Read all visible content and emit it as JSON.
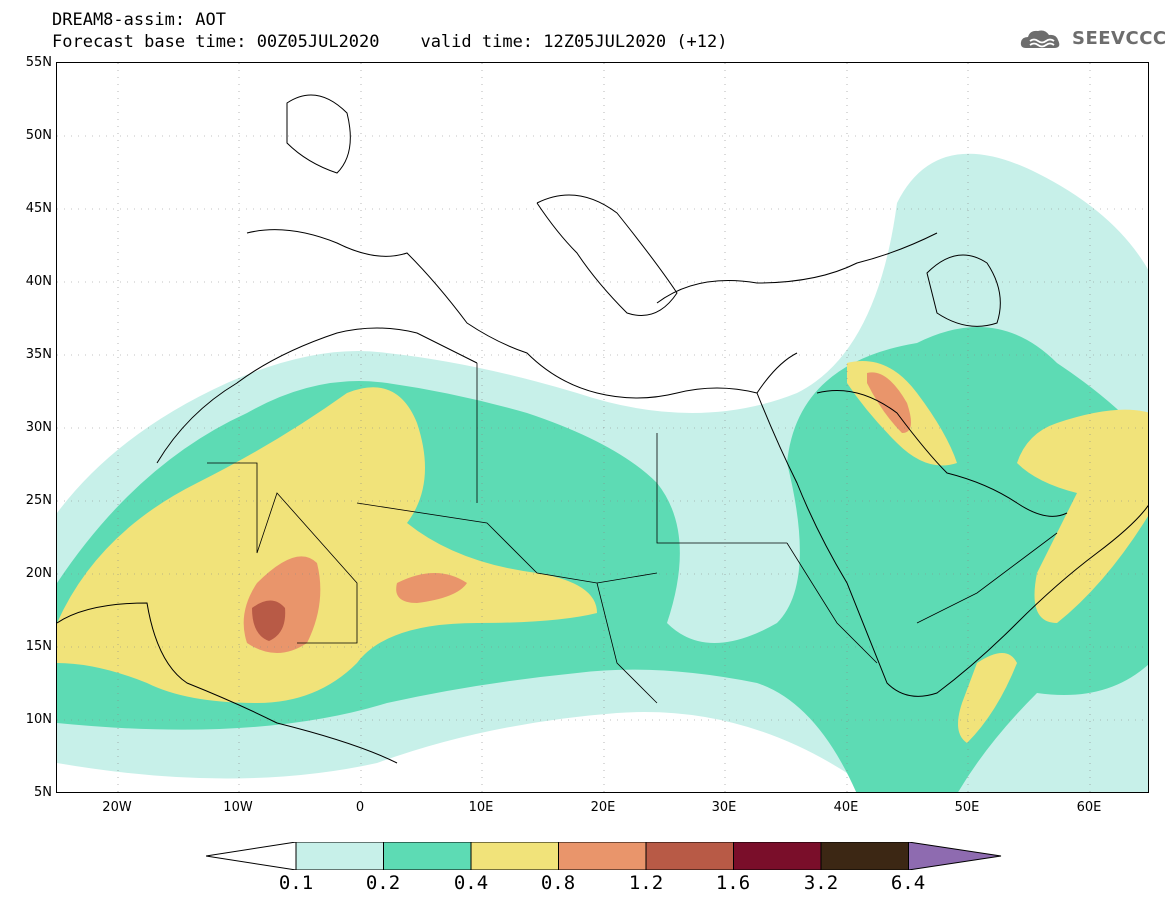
{
  "header": {
    "line1": "DREAM8-assim: AOT",
    "line2": "Forecast base time: 00Z05JUL2020    valid time: 12Z05JUL2020 (+12)"
  },
  "logo": {
    "text": "SEEVCCC",
    "icon": "cloud-icon",
    "color": "#6d6d6d"
  },
  "map": {
    "lat_labels": [
      "55N",
      "50N",
      "45N",
      "40N",
      "35N",
      "30N",
      "25N",
      "20N",
      "15N",
      "10N",
      "5N"
    ],
    "lon_labels": [
      "20W",
      "10W",
      "0",
      "10E",
      "20E",
      "30E",
      "40E",
      "50E",
      "60E"
    ],
    "lat_range": [
      5,
      55
    ],
    "lon_range": [
      -25,
      65
    ],
    "grid": true
  },
  "colorbar": {
    "labels": [
      "0.1",
      "0.2",
      "0.4",
      "0.8",
      "1.2",
      "1.6",
      "3.2",
      "6.4"
    ],
    "colors": [
      "#ffffff",
      "#c7f0e9",
      "#5ddbb4",
      "#f1e37a",
      "#e9956b",
      "#b85a46",
      "#7a0e2a",
      "#3c2714",
      "#8e6bb0"
    ]
  }
}
